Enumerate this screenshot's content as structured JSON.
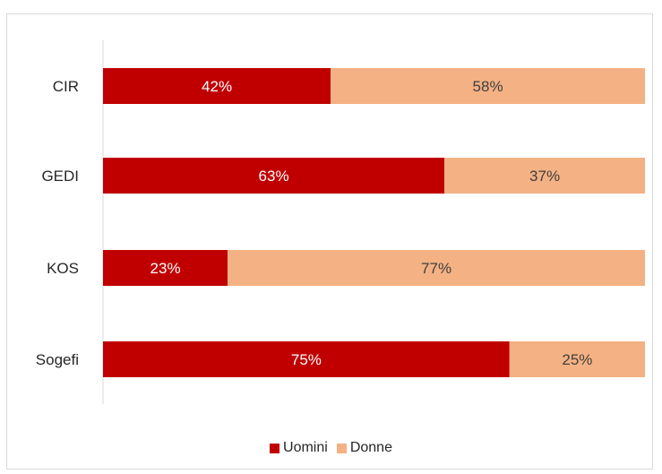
{
  "chart_data": {
    "type": "bar",
    "orientation": "horizontal",
    "stacked": "100%",
    "categories": [
      "CIR",
      "GEDI",
      "KOS",
      "Sogefi"
    ],
    "series": [
      {
        "name": "Uomini",
        "values": [
          42,
          63,
          23,
          75
        ],
        "labels": [
          "42%",
          "63%",
          "23%",
          "75%"
        ],
        "color": "#c00000",
        "label_color": "#ffffff"
      },
      {
        "name": "Donne",
        "values": [
          58,
          37,
          77,
          25
        ],
        "labels": [
          "58%",
          "37%",
          "77%",
          "25%"
        ],
        "color": "#f4b183",
        "label_color": "#404040"
      }
    ],
    "xlim": [
      0,
      100
    ],
    "grid": false,
    "legend_position": "bottom"
  }
}
